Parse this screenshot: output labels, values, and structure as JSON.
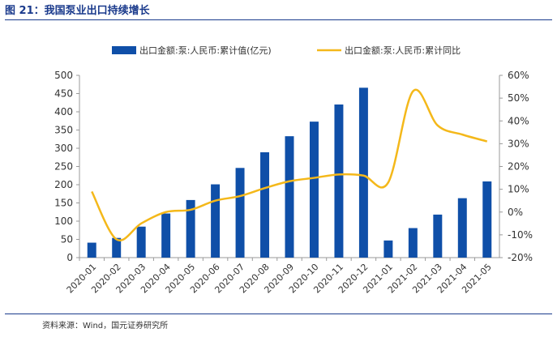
{
  "figure": {
    "title": "图 21：我国泵业出口持续增长",
    "source": "资料来源：Wind，国元证券研究所"
  },
  "colors": {
    "bar": "#0f4fa8",
    "line": "#f4b81a",
    "title": "#1a3a8c",
    "text": "#333333"
  },
  "chart_data": {
    "type": "bar",
    "categories": [
      "2020-01",
      "2020-02",
      "2020-03",
      "2020-04",
      "2020-05",
      "2020-06",
      "2020-07",
      "2020-08",
      "2020-09",
      "2020-10",
      "2020-11",
      "2020-12",
      "2021-01",
      "2021-02",
      "2021-03",
      "2021-04",
      "2021-05"
    ],
    "series": [
      {
        "name": "出口金额:泵:人民币:累计值(亿元)",
        "type": "bar",
        "axis": "left",
        "values": [
          41,
          54,
          85,
          121,
          158,
          201,
          246,
          289,
          333,
          373,
          420,
          466,
          47,
          81,
          118,
          163,
          209
        ]
      },
      {
        "name": "出口金额:泵:人民币:累计同比",
        "type": "line",
        "axis": "right",
        "values": [
          9,
          -12,
          -5,
          0,
          1,
          5,
          7,
          10.5,
          13.5,
          15,
          16.5,
          16,
          13,
          53,
          38,
          34,
          31
        ]
      }
    ],
    "y_left": {
      "min": 0,
      "max": 500,
      "ticks": [
        "0",
        "50",
        "100",
        "150",
        "200",
        "250",
        "300",
        "350",
        "400",
        "450",
        "500"
      ]
    },
    "y_right": {
      "min": -20,
      "max": 60,
      "ticks": [
        "-20%",
        "-10%",
        "0%",
        "10%",
        "20%",
        "30%",
        "40%",
        "50%",
        "60%"
      ]
    },
    "legend": "top",
    "grid": false
  }
}
